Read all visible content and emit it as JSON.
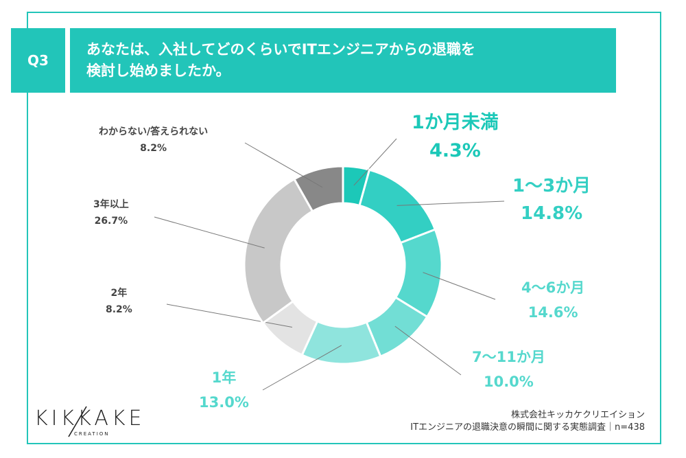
{
  "header": {
    "badge": "Q3",
    "question": "あなたは、入社してどのくらいでITエンジニアからの退職を\n検討し始めましたか。"
  },
  "chart_data": {
    "type": "pie",
    "donut": true,
    "slices": [
      {
        "label": "1か月未満",
        "value": 4.3,
        "value_text": "4.3%",
        "color": "#1cc8b8"
      },
      {
        "label": "1〜3か月",
        "value": 14.8,
        "value_text": "14.8%",
        "color": "#33cfc3"
      },
      {
        "label": "4〜6か月",
        "value": 14.6,
        "value_text": "14.6%",
        "color": "#55d8cd"
      },
      {
        "label": "7〜11か月",
        "value": 10.0,
        "value_text": "10.0%",
        "color": "#72ded5"
      },
      {
        "label": "1年",
        "value": 13.0,
        "value_text": "13.0%",
        "color": "#8fe4dd"
      },
      {
        "label": "2年",
        "value": 8.2,
        "value_text": "8.2%",
        "color": "#e3e3e3"
      },
      {
        "label": "3年以上",
        "value": 26.7,
        "value_text": "26.7%",
        "color": "#c8c8c8"
      },
      {
        "label": "わからない/答えられない",
        "value": 8.2,
        "value_text": "8.2%",
        "color": "#888888"
      }
    ]
  },
  "credit": {
    "company": "株式会社キッカケクリエイション",
    "survey": "ITエンジニアの退職決意の瞬間に関する実態調査｜n=438"
  },
  "logo": {
    "name": "KIKKAKE",
    "sub": "CREATION"
  }
}
